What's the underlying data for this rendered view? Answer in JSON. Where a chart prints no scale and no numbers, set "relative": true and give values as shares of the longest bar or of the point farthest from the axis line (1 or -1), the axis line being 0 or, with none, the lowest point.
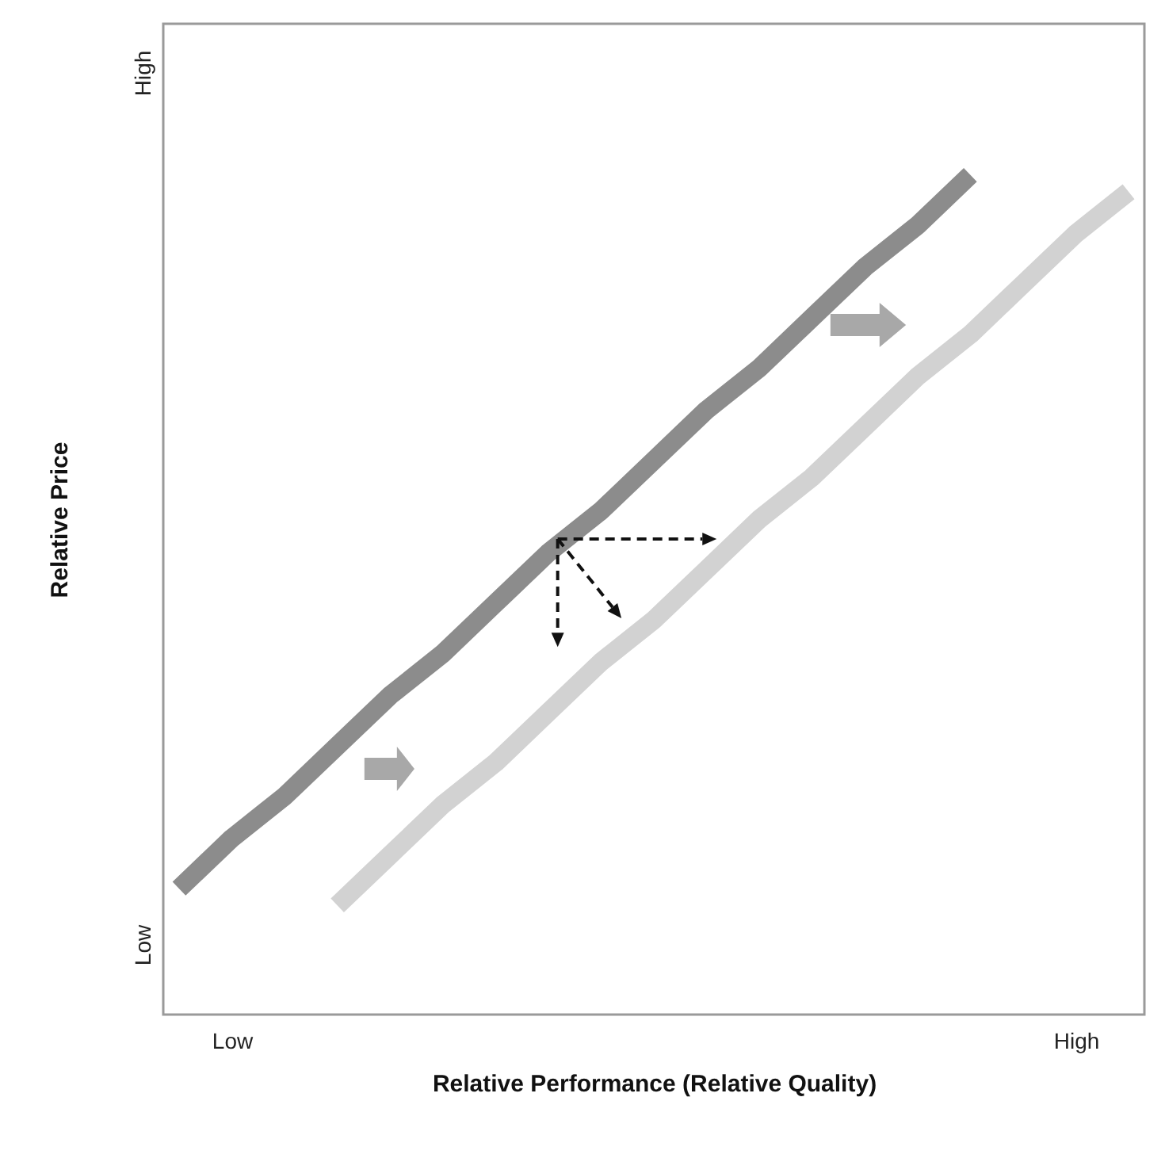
{
  "chart_data": {
    "type": "line",
    "xlabel": "Relative Performance (Relative Quality)",
    "ylabel": "Relative Price",
    "relative": true,
    "categories": [
      null,
      "Low",
      null,
      null,
      null,
      null,
      null,
      null,
      null,
      null,
      null,
      null,
      null,
      null,
      null,
      null,
      null,
      "High",
      null
    ],
    "annotations": [
      "Low",
      "High"
    ],
    "grid": false,
    "series": [
      {
        "color": "#8c8c8c",
        "values": [
          0.15,
          0.21,
          0.26,
          0.32,
          0.38,
          0.43,
          0.49,
          0.55,
          0.6,
          0.66,
          0.72,
          0.77,
          0.83,
          0.89,
          0.94,
          1.0,
          null,
          null,
          null
        ]
      },
      {
        "color": "#d2d2d2",
        "values": [
          null,
          null,
          null,
          0.13,
          0.19,
          0.25,
          0.3,
          0.36,
          0.42,
          0.47,
          0.53,
          0.59,
          0.64,
          0.7,
          0.76,
          0.81,
          0.87,
          0.93,
          0.98
        ]
      }
    ]
  }
}
